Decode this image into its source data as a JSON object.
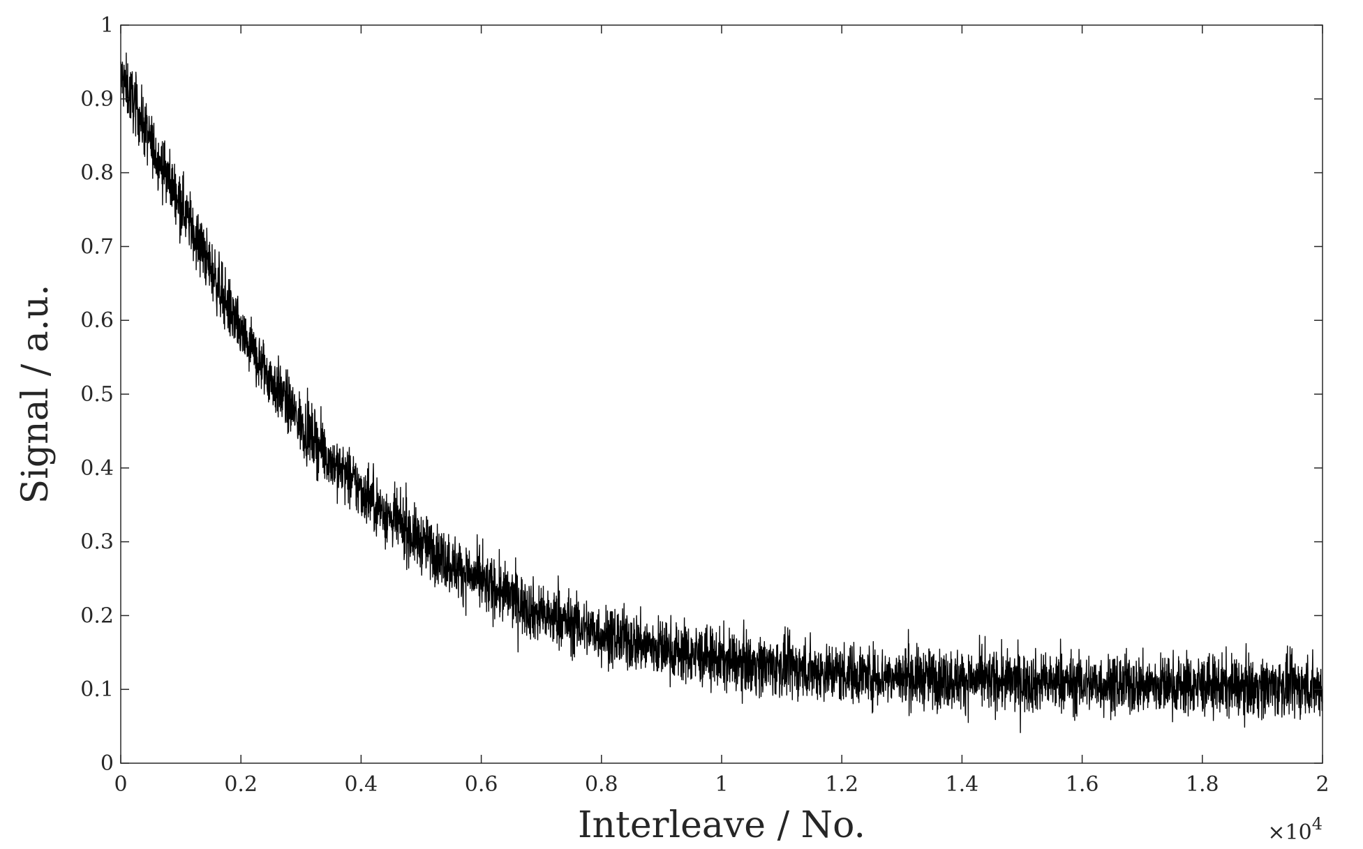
{
  "chart_data": {
    "type": "line",
    "title": "",
    "xlabel": "Interleave / No.",
    "ylabel": "Signal / a.u.",
    "x_exponent_label": "×10",
    "x_exponent_power": "4",
    "xlim": [
      0,
      20000
    ],
    "ylim": [
      0,
      1
    ],
    "grid": false,
    "box": true,
    "x_ticks": [
      {
        "value": 0,
        "label": "0"
      },
      {
        "value": 2000,
        "label": "0.2"
      },
      {
        "value": 4000,
        "label": "0.4"
      },
      {
        "value": 6000,
        "label": "0.6"
      },
      {
        "value": 8000,
        "label": "0.8"
      },
      {
        "value": 10000,
        "label": "1"
      },
      {
        "value": 12000,
        "label": "1.2"
      },
      {
        "value": 14000,
        "label": "1.4"
      },
      {
        "value": 16000,
        "label": "1.6"
      },
      {
        "value": 18000,
        "label": "1.8"
      },
      {
        "value": 20000,
        "label": "2"
      }
    ],
    "y_ticks": [
      {
        "value": 0,
        "label": "0"
      },
      {
        "value": 0.1,
        "label": "0.1"
      },
      {
        "value": 0.2,
        "label": "0.2"
      },
      {
        "value": 0.3,
        "label": "0.3"
      },
      {
        "value": 0.4,
        "label": "0.4"
      },
      {
        "value": 0.5,
        "label": "0.5"
      },
      {
        "value": 0.6,
        "label": "0.6"
      },
      {
        "value": 0.7,
        "label": "0.7"
      },
      {
        "value": 0.8,
        "label": "0.8"
      },
      {
        "value": 0.9,
        "label": "0.9"
      },
      {
        "value": 1,
        "label": "1"
      }
    ],
    "series": [
      {
        "color": "#000000",
        "x": [
          0,
          200,
          500,
          1000,
          1500,
          2000,
          2500,
          3000,
          3500,
          4000,
          4500,
          5000,
          5500,
          6000,
          6500,
          7000,
          7500,
          8000,
          9000,
          10000,
          11000,
          12000,
          13000,
          14000,
          15000,
          16000,
          17000,
          18000,
          19000,
          20000
        ],
        "y": [
          0.93,
          0.9,
          0.84,
          0.76,
          0.67,
          0.58,
          0.52,
          0.46,
          0.41,
          0.37,
          0.33,
          0.3,
          0.27,
          0.245,
          0.225,
          0.2,
          0.19,
          0.175,
          0.155,
          0.14,
          0.13,
          0.122,
          0.117,
          0.113,
          0.11,
          0.108,
          0.106,
          0.105,
          0.104,
          0.103
        ],
        "noise_amplitude": 0.04
      }
    ]
  }
}
